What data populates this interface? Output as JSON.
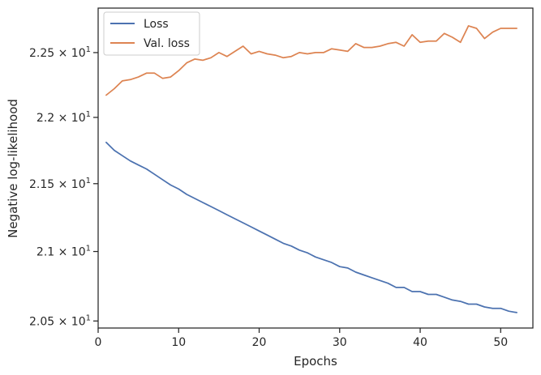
{
  "chart_data": {
    "type": "line",
    "title": "",
    "xlabel": "Epochs",
    "ylabel": "Negative log-likelihood",
    "xlim": [
      0,
      54
    ],
    "ylim": [
      20.45,
      22.85
    ],
    "grid": false,
    "legend_position": "top-left",
    "y_scale": "log",
    "x_ticks": [
      {
        "value": 0,
        "label": "0"
      },
      {
        "value": 10,
        "label": "10"
      },
      {
        "value": 20,
        "label": "20"
      },
      {
        "value": 30,
        "label": "30"
      },
      {
        "value": 40,
        "label": "40"
      },
      {
        "value": 50,
        "label": "50"
      }
    ],
    "y_ticks": [
      {
        "value": 20.5,
        "mantissa": "2.05",
        "base": "10",
        "exp": "1"
      },
      {
        "value": 21.0,
        "mantissa": "2.1",
        "base": "10",
        "exp": "1"
      },
      {
        "value": 21.5,
        "mantissa": "2.15",
        "base": "10",
        "exp": "1"
      },
      {
        "value": 22.0,
        "mantissa": "2.2",
        "base": "10",
        "exp": "1"
      },
      {
        "value": 22.5,
        "mantissa": "2.25",
        "base": "10",
        "exp": "1"
      }
    ],
    "x": [
      1,
      2,
      3,
      4,
      5,
      6,
      7,
      8,
      9,
      10,
      11,
      12,
      13,
      14,
      15,
      16,
      17,
      18,
      19,
      20,
      21,
      22,
      23,
      24,
      25,
      26,
      27,
      28,
      29,
      30,
      31,
      32,
      33,
      34,
      35,
      36,
      37,
      38,
      39,
      40,
      41,
      42,
      43,
      44,
      45,
      46,
      47,
      48,
      49,
      50,
      51,
      52
    ],
    "series": [
      {
        "name": "Loss",
        "color": "#4c72b0",
        "values": [
          21.81,
          21.75,
          21.71,
          21.67,
          21.64,
          21.61,
          21.57,
          21.53,
          21.49,
          21.46,
          21.42,
          21.39,
          21.36,
          21.33,
          21.3,
          21.27,
          21.24,
          21.21,
          21.18,
          21.15,
          21.12,
          21.09,
          21.06,
          21.04,
          21.01,
          20.99,
          20.96,
          20.94,
          20.92,
          20.89,
          20.88,
          20.85,
          20.83,
          20.81,
          20.79,
          20.77,
          20.74,
          20.74,
          20.71,
          20.71,
          20.69,
          20.69,
          20.67,
          20.65,
          20.64,
          20.62,
          20.62,
          20.6,
          20.59,
          20.59,
          20.57,
          20.56
        ]
      },
      {
        "name": "Val. loss",
        "color": "#dd8452",
        "values": [
          22.17,
          22.22,
          22.28,
          22.29,
          22.31,
          22.34,
          22.34,
          22.3,
          22.31,
          22.36,
          22.42,
          22.45,
          22.44,
          22.46,
          22.5,
          22.47,
          22.51,
          22.55,
          22.49,
          22.51,
          22.49,
          22.48,
          22.46,
          22.47,
          22.5,
          22.49,
          22.5,
          22.5,
          22.53,
          22.52,
          22.51,
          22.57,
          22.54,
          22.54,
          22.55,
          22.57,
          22.58,
          22.55,
          22.64,
          22.58,
          22.59,
          22.59,
          22.65,
          22.62,
          22.58,
          22.71,
          22.69,
          22.61,
          22.66,
          22.69,
          22.69,
          22.69
        ]
      }
    ]
  }
}
